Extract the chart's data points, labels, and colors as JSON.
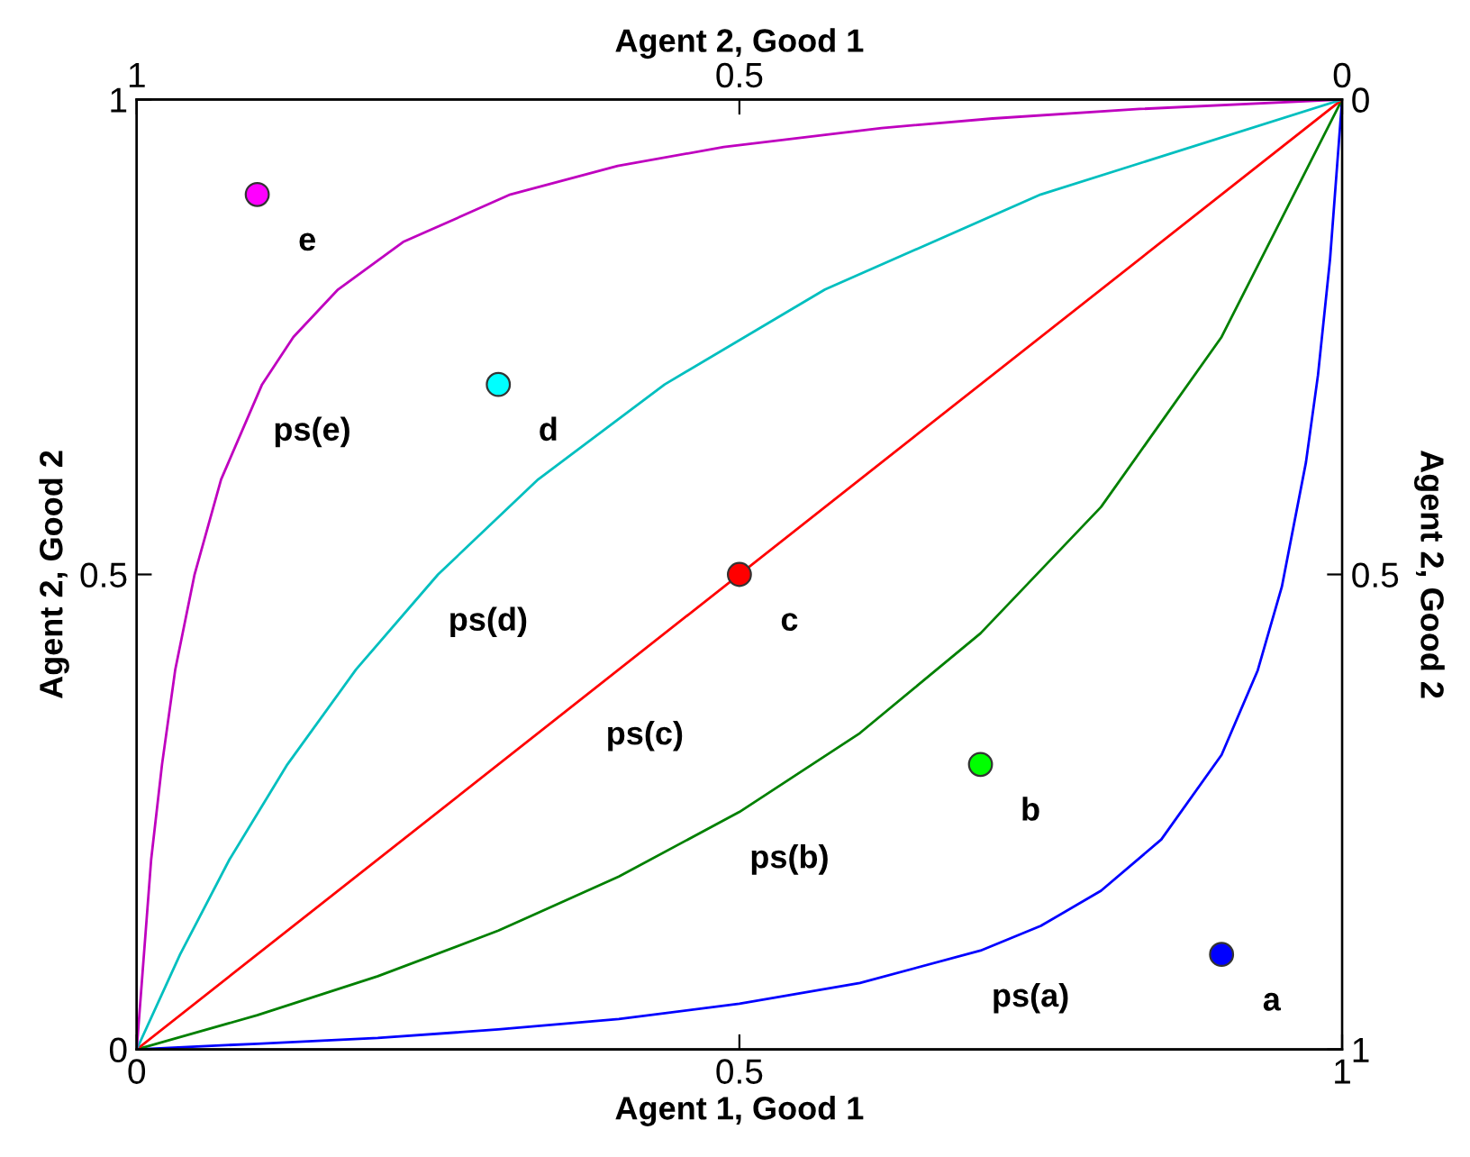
{
  "chart_data": {
    "type": "line",
    "xlabel": "Agent 1, Good 1",
    "ylabel": "Agent 2, Good 2",
    "x2label": "Agent 2, Good 1",
    "y2label": "Agent 2, Good 2",
    "xlim": [
      0,
      1
    ],
    "ylim": [
      0,
      1
    ],
    "xticks": [
      0,
      0.5,
      1
    ],
    "yticks": [
      0,
      0.5,
      1
    ],
    "x2lim": [
      1,
      0
    ],
    "x2ticks": [
      1,
      0.5,
      0
    ],
    "y2lim": [
      1,
      0
    ],
    "y2ticks": [
      0,
      0.5,
      1
    ],
    "series": [
      {
        "color": "#0000ff",
        "x": [
          0,
          0.05,
          0.1,
          0.2,
          0.3,
          0.4,
          0.5,
          0.6,
          0.7,
          0.75,
          0.8,
          0.85,
          0.9,
          0.93,
          0.95,
          0.97,
          0.98,
          0.99,
          1
        ],
        "values": [
          0,
          0.003,
          0.006,
          0.012,
          0.021,
          0.032,
          0.048,
          0.07,
          0.104,
          0.13,
          0.167,
          0.221,
          0.31,
          0.399,
          0.487,
          0.618,
          0.71,
          0.832,
          1
        ]
      },
      {
        "color": "#008000",
        "x": [
          0,
          0.1,
          0.2,
          0.3,
          0.4,
          0.5,
          0.6,
          0.7,
          0.8,
          0.9,
          1
        ],
        "values": [
          0,
          0.036,
          0.077,
          0.125,
          0.182,
          0.25,
          0.333,
          0.438,
          0.571,
          0.75,
          1
        ]
      },
      {
        "color": "#ff0000",
        "x": [
          0,
          1
        ],
        "values": [
          0,
          1
        ]
      },
      {
        "color": "#00bfbf",
        "x": [
          0,
          0.036,
          0.077,
          0.125,
          0.182,
          0.25,
          0.333,
          0.438,
          0.571,
          0.75,
          1
        ],
        "values": [
          0,
          0.1,
          0.2,
          0.3,
          0.4,
          0.5,
          0.6,
          0.7,
          0.8,
          0.9,
          1
        ]
      },
      {
        "color": "#bf00bf",
        "x": [
          0,
          0.003,
          0.006,
          0.012,
          0.021,
          0.032,
          0.048,
          0.07,
          0.104,
          0.13,
          0.167,
          0.221,
          0.31,
          0.399,
          0.487,
          0.618,
          0.71,
          0.832,
          1
        ],
        "values": [
          0,
          0.05,
          0.1,
          0.2,
          0.3,
          0.4,
          0.5,
          0.6,
          0.7,
          0.75,
          0.8,
          0.85,
          0.9,
          0.93,
          0.95,
          0.97,
          0.98,
          0.99,
          1
        ]
      },
      {
        "type": "scatter",
        "marker": "circle",
        "x": [
          0.9,
          0.7,
          0.5,
          0.3,
          0.1
        ],
        "values": [
          0.1,
          0.3,
          0.5,
          0.7,
          0.9
        ],
        "colors": [
          "#0000ff",
          "#00ff00",
          "#ff0000",
          "#00ffff",
          "#ff00ff"
        ]
      }
    ],
    "annotations": [
      {
        "text": "a",
        "x": 0.9,
        "y": 0.1
      },
      {
        "text": "b",
        "x": 0.7,
        "y": 0.3
      },
      {
        "text": "c",
        "x": 0.5,
        "y": 0.5
      },
      {
        "text": "d",
        "x": 0.3,
        "y": 0.7
      },
      {
        "text": "e",
        "x": 0.1,
        "y": 0.9
      },
      {
        "text": "ps(a)",
        "x": 0.7,
        "y": 0.104
      },
      {
        "text": "ps(b)",
        "x": 0.5,
        "y": 0.25
      },
      {
        "text": "ps(c)",
        "x": 0.38,
        "y": 0.38
      },
      {
        "text": "ps(d)",
        "x": 0.25,
        "y": 0.5
      },
      {
        "text": "ps(e)",
        "x": 0.104,
        "y": 0.7
      }
    ]
  }
}
